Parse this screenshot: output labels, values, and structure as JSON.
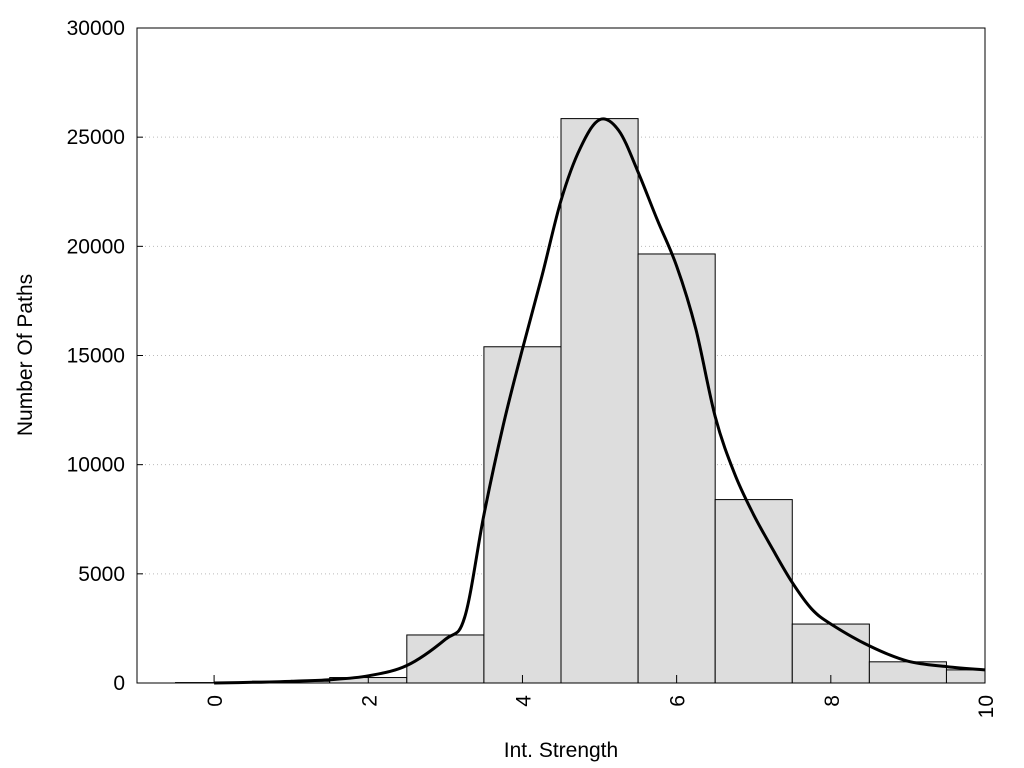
{
  "chart_data": {
    "type": "bar",
    "title": "",
    "xlabel": "Int. Strength",
    "ylabel": "Number Of Paths",
    "xlim": [
      -1,
      10
    ],
    "ylim": [
      0,
      30000
    ],
    "x_ticks": [
      "0",
      "2",
      "4",
      "6",
      "8",
      "10"
    ],
    "y_ticks": [
      "0",
      "5000",
      "10000",
      "15000",
      "20000",
      "25000",
      "30000"
    ],
    "grid": "horizontal-dotted",
    "legend": "none",
    "colors": {
      "bar_fill": "#dddddd",
      "bar_stroke": "#000000",
      "curve": "#000000",
      "grid": "#bbbbbb"
    },
    "bin_width": 1,
    "bins": [
      {
        "x": 0,
        "value": 20
      },
      {
        "x": 1,
        "value": 80
      },
      {
        "x": 2,
        "value": 250
      },
      {
        "x": 3,
        "value": 2200
      },
      {
        "x": 4,
        "value": 15400
      },
      {
        "x": 5,
        "value": 25850
      },
      {
        "x": 6,
        "value": 19650
      },
      {
        "x": 7,
        "value": 8400
      },
      {
        "x": 8,
        "value": 2700
      },
      {
        "x": 9,
        "value": 970
      },
      {
        "x": 10,
        "value": 600
      }
    ],
    "curve": {
      "x": [
        0,
        0.5,
        1,
        1.5,
        2,
        2.5,
        3,
        3.25,
        3.5,
        3.75,
        4,
        4.25,
        4.5,
        4.75,
        5,
        5.25,
        5.5,
        5.75,
        6,
        6.25,
        6.5,
        6.75,
        7,
        7.25,
        7.5,
        7.75,
        8,
        8.5,
        9,
        9.5,
        10
      ],
      "y": [
        0,
        30,
        80,
        150,
        330,
        800,
        2000,
        3000,
        7700,
        11800,
        15300,
        18600,
        22100,
        24500,
        25800,
        25300,
        23400,
        21200,
        19100,
        16200,
        12200,
        9600,
        7700,
        6100,
        4600,
        3400,
        2700,
        1700,
        1000,
        750,
        600
      ]
    }
  }
}
